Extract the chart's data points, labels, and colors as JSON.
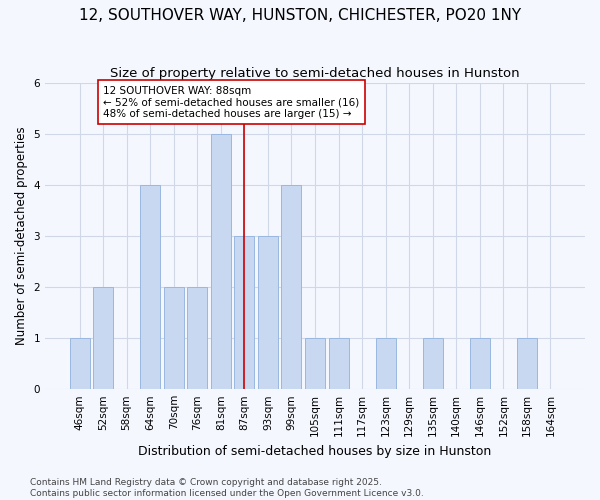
{
  "title": "12, SOUTHOVER WAY, HUNSTON, CHICHESTER, PO20 1NY",
  "subtitle": "Size of property relative to semi-detached houses in Hunston",
  "xlabel": "Distribution of semi-detached houses by size in Hunston",
  "ylabel": "Number of semi-detached properties",
  "categories": [
    "46sqm",
    "52sqm",
    "58sqm",
    "64sqm",
    "70sqm",
    "76sqm",
    "81sqm",
    "87sqm",
    "93sqm",
    "99sqm",
    "105sqm",
    "111sqm",
    "117sqm",
    "123sqm",
    "129sqm",
    "135sqm",
    "140sqm",
    "146sqm",
    "152sqm",
    "158sqm",
    "164sqm"
  ],
  "values": [
    1,
    2,
    0,
    4,
    2,
    2,
    5,
    3,
    3,
    4,
    1,
    1,
    0,
    1,
    0,
    1,
    0,
    1,
    0,
    1,
    0
  ],
  "bar_color": "#c8d8f0",
  "bar_edge_color": "#99b8e0",
  "vline_index": 7,
  "vline_color": "#cc0000",
  "ylim": [
    0,
    6
  ],
  "yticks": [
    0,
    1,
    2,
    3,
    4,
    5,
    6
  ],
  "grid_color": "#d0d8e8",
  "bg_color": "#f5f7ff",
  "annotation_text": "12 SOUTHOVER WAY: 88sqm\n← 52% of semi-detached houses are smaller (16)\n48% of semi-detached houses are larger (15) →",
  "annotation_box_color": "#ffffff",
  "annotation_box_edge": "#cc0000",
  "footnote": "Contains HM Land Registry data © Crown copyright and database right 2025.\nContains public sector information licensed under the Open Government Licence v3.0.",
  "title_fontsize": 11,
  "subtitle_fontsize": 9.5,
  "xlabel_fontsize": 9,
  "ylabel_fontsize": 8.5,
  "tick_fontsize": 7.5,
  "annotation_fontsize": 7.5,
  "footnote_fontsize": 6.5
}
